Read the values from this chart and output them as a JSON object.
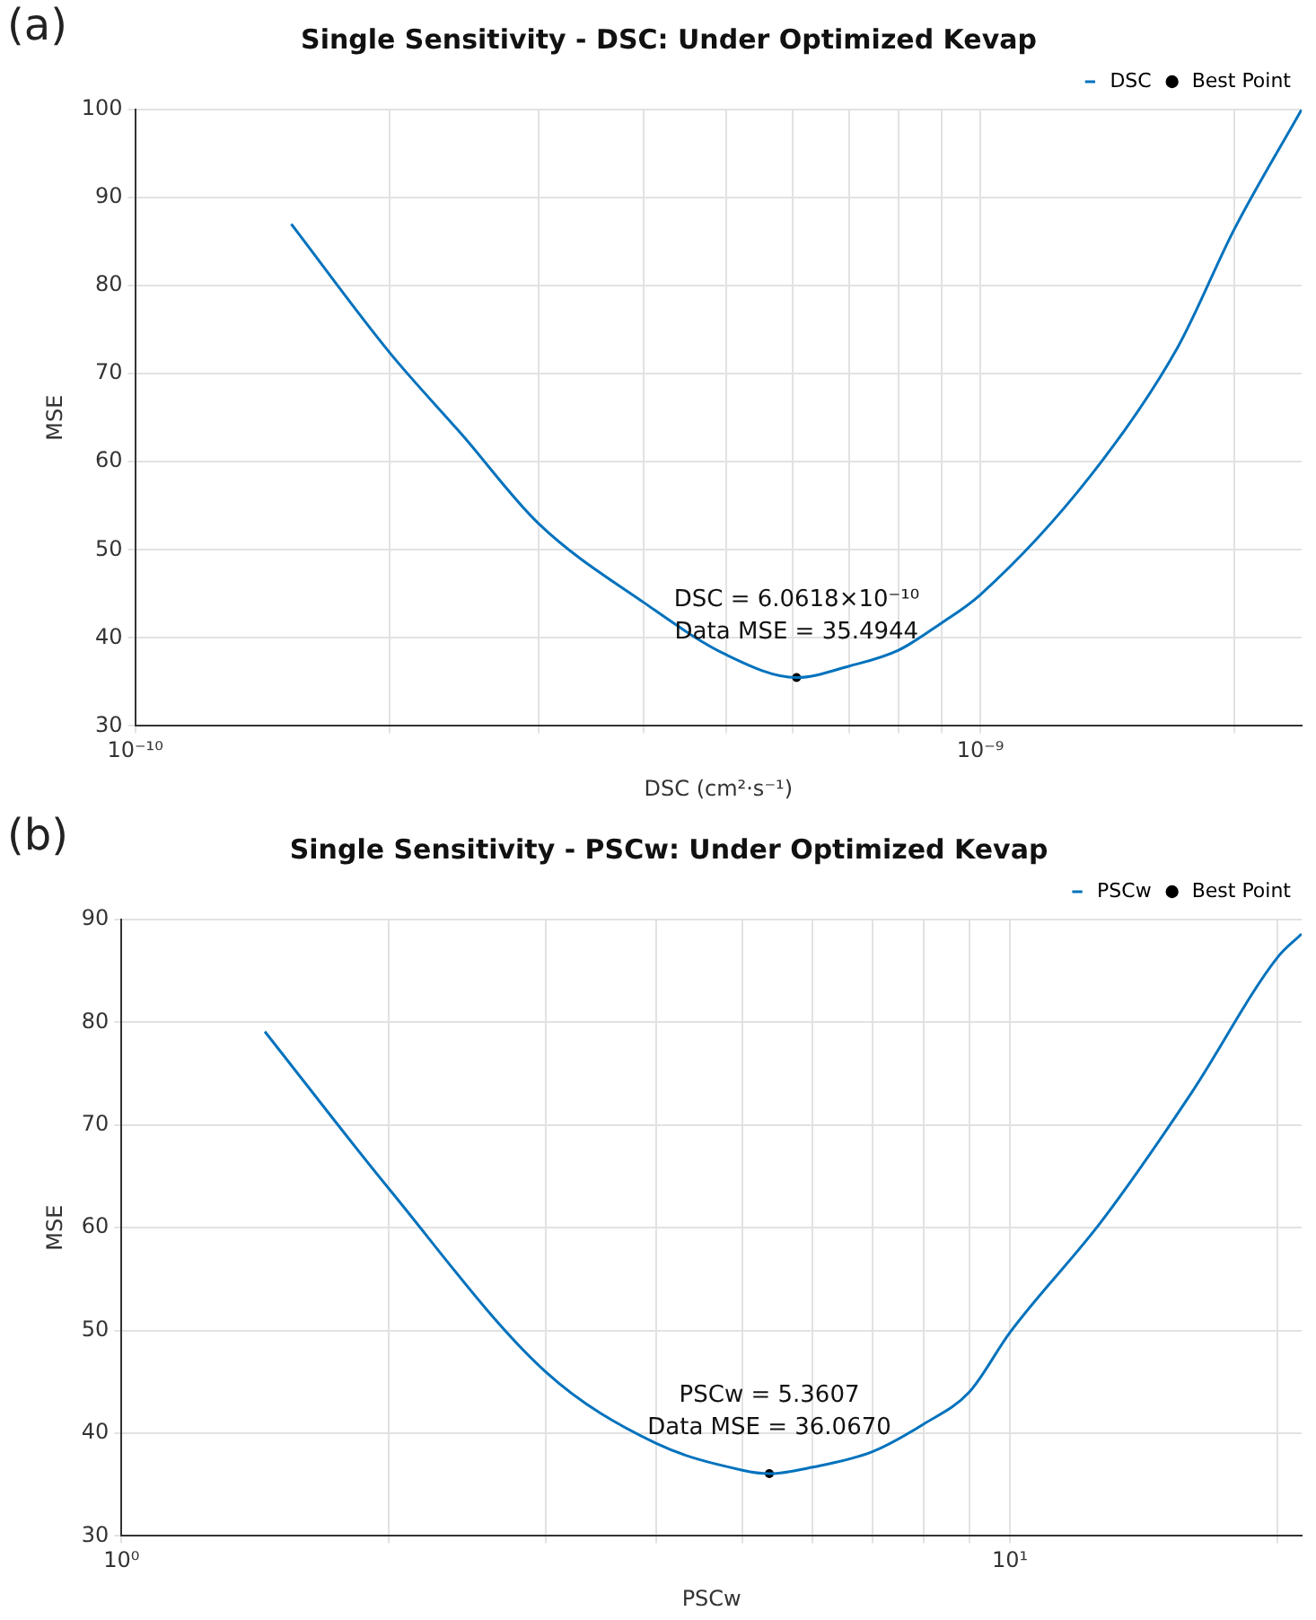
{
  "chart_data": [
    {
      "type": "line",
      "title": "Single Sensitivity - DSC: Under Optimized Kevap",
      "xlabel": "DSC (cm²·s⁻¹)",
      "ylabel": "MSE",
      "log": "x",
      "grid": true,
      "legend": "top right",
      "xlim": [
        1e-10,
        2.4e-09
      ],
      "xticks": [
        {
          "value": 1e-10,
          "label": "10⁻¹⁰"
        },
        {
          "value": 2e-10,
          "label": null
        },
        {
          "value": 3e-10,
          "label": null
        },
        {
          "value": 4e-10,
          "label": null
        },
        {
          "value": 5e-10,
          "label": null
        },
        {
          "value": 6e-10,
          "label": null
        },
        {
          "value": 7e-10,
          "label": null
        },
        {
          "value": 8e-10,
          "label": null
        },
        {
          "value": 9e-10,
          "label": null
        },
        {
          "value": 1e-09,
          "label": "10⁻⁹"
        },
        {
          "value": 2e-09,
          "label": null
        }
      ],
      "ylim": [
        30,
        100
      ],
      "yticks": [
        30,
        40,
        50,
        60,
        70,
        80,
        90,
        100
      ],
      "series": [
        {
          "name": "DSC",
          "color": "#0072bd",
          "marker": "none",
          "x": [
            1.53e-10,
            2e-10,
            2.44e-10,
            3e-10,
            4e-10,
            5e-10,
            6.0618e-10,
            7e-10,
            8e-10,
            9e-10,
            1e-09,
            1.35e-09,
            1.71e-09,
            2e-09,
            2.4e-09
          ],
          "values": [
            87,
            72.4,
            63,
            53,
            44,
            38.1,
            35.4944,
            36.8,
            38.6,
            41.7,
            44.9,
            58.4,
            72.9,
            86.5,
            100
          ]
        },
        {
          "name": "Best Point",
          "type": "scatter",
          "color": "#000000",
          "marker": "circle",
          "x": [
            6.0618e-10
          ],
          "values": [
            35.4944
          ]
        }
      ],
      "annotations": [
        "(a)",
        {
          "text": "DSC = 6.0618×10⁻¹⁰\nData MSE = 35.4944",
          "x": 6.0618e-10,
          "y": 35.4944
        }
      ]
    },
    {
      "type": "line",
      "title": "Single Sensitivity - PSCw: Under Optimized Kevap",
      "xlabel": "PSCw",
      "ylabel": "MSE",
      "log": "x",
      "grid": true,
      "legend": "top right",
      "xlim": [
        1,
        21.3
      ],
      "xticks": [
        {
          "value": 1,
          "label": "10⁰"
        },
        {
          "value": 2,
          "label": null
        },
        {
          "value": 3,
          "label": null
        },
        {
          "value": 4,
          "label": null
        },
        {
          "value": 5,
          "label": null
        },
        {
          "value": 6,
          "label": null
        },
        {
          "value": 7,
          "label": null
        },
        {
          "value": 8,
          "label": null
        },
        {
          "value": 9,
          "label": null
        },
        {
          "value": 10,
          "label": "10¹"
        },
        {
          "value": 20,
          "label": null
        }
      ],
      "ylim": [
        30,
        90
      ],
      "yticks": [
        30,
        40,
        50,
        60,
        70,
        80,
        90
      ],
      "series": [
        {
          "name": "PSCw",
          "color": "#0072bd",
          "marker": "none",
          "x": [
            1.45,
            2,
            3,
            4,
            5,
            5.3607,
            6,
            7,
            8,
            9,
            10,
            12.7,
            16,
            20,
            21.3
          ],
          "values": [
            79.1,
            63.8,
            46,
            39,
            36.4,
            36.067,
            36.7,
            38.2,
            40.9,
            44,
            49.8,
            60.7,
            73.1,
            86.3,
            88.6
          ]
        },
        {
          "name": "Best Point",
          "type": "scatter",
          "color": "#000000",
          "marker": "circle",
          "x": [
            5.3607
          ],
          "values": [
            36.067
          ]
        }
      ],
      "annotations": [
        "(b)",
        {
          "text": "PSCw = 5.3607\nData MSE = 36.0670",
          "x": 5.3607,
          "y": 36.067
        }
      ]
    }
  ]
}
